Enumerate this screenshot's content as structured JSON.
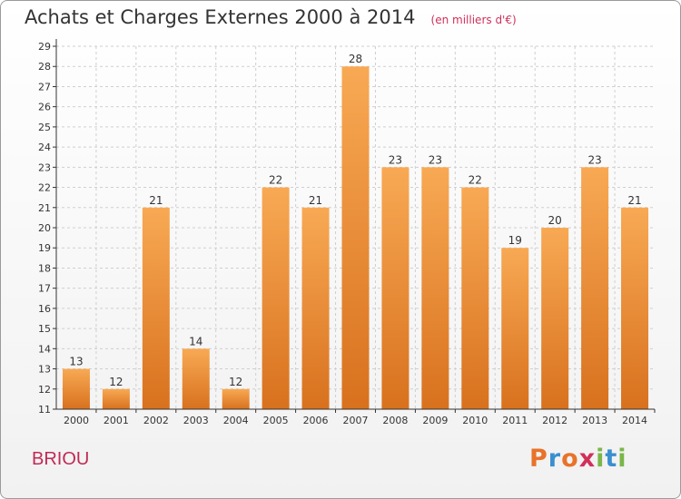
{
  "header": {
    "title": "Achats et Charges Externes 2000 à 2014",
    "unit": "(en milliers d'€)"
  },
  "footer": {
    "commune": "BRIOU",
    "logo_text": "Proxiti",
    "logo_colors": [
      "#e8732a",
      "#3a8fd0",
      "#e8732a",
      "#d0305a",
      "#7ab648",
      "#3a8fd0",
      "#7ab648"
    ]
  },
  "colors": {
    "bar_top": "#f8a954",
    "bar_bottom": "#d8711e",
    "grid": "#cfcfcf",
    "axis": "#333333"
  },
  "chart_data": {
    "type": "bar",
    "title": "Achats et Charges Externes 2000 à 2014",
    "subtitle": "(en milliers d'€)",
    "xlabel": "",
    "ylabel": "",
    "categories": [
      "2000",
      "2001",
      "2002",
      "2003",
      "2004",
      "2005",
      "2006",
      "2007",
      "2008",
      "2009",
      "2010",
      "2011",
      "2012",
      "2013",
      "2014"
    ],
    "values": [
      13,
      12,
      21,
      14,
      12,
      22,
      21,
      28,
      23,
      23,
      22,
      19,
      20,
      23,
      21
    ],
    "ylim": [
      11,
      29
    ],
    "yticks": [
      11,
      12,
      13,
      14,
      15,
      16,
      17,
      18,
      19,
      20,
      21,
      22,
      23,
      24,
      25,
      26,
      27,
      28,
      29
    ],
    "grid": true,
    "data_labels": true
  }
}
